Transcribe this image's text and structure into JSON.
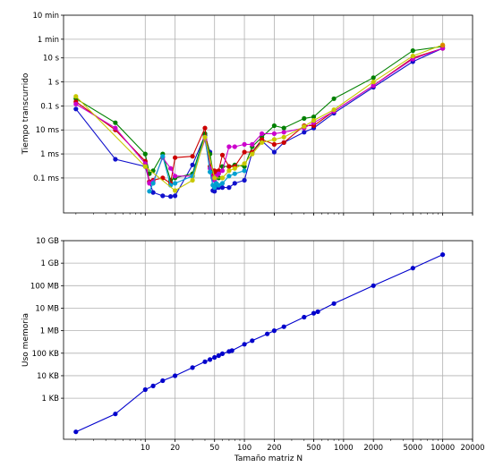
{
  "chart_data": [
    {
      "type": "line",
      "ylabel": "Tiempo transcurrido",
      "xlabel": "",
      "x_scale": "log",
      "y_scale": "log",
      "xlim": [
        1.5,
        20000
      ],
      "ylim_seconds": [
        3.5e-06,
        600
      ],
      "grid": true,
      "yticks": [
        {
          "v": 0.0001,
          "label": "0.1 ms"
        },
        {
          "v": 0.001,
          "label": "1 ms"
        },
        {
          "v": 0.01,
          "label": "10 ms"
        },
        {
          "v": 0.1,
          "label": "0.1 s"
        },
        {
          "v": 1,
          "label": "1 s"
        },
        {
          "v": 10,
          "label": "10 s"
        },
        {
          "v": 60,
          "label": "1 min"
        },
        {
          "v": 600,
          "label": "10 min"
        }
      ],
      "series": [
        {
          "color": "#1010cc",
          "x": [
            2,
            5,
            10,
            11,
            12,
            15,
            18,
            20,
            30,
            40,
            45,
            48,
            50,
            52,
            55,
            60,
            70,
            80,
            100,
            120,
            150,
            200,
            250,
            400,
            500,
            800,
            2000,
            5000,
            10000
          ],
          "y": [
            0.075,
            0.0006,
            0.0003,
            7e-05,
            2.5e-05,
            1.8e-05,
            1.7e-05,
            1.8e-05,
            0.00035,
            0.006,
            0.0012,
            3e-05,
            2.8e-05,
            4e-05,
            4e-05,
            4e-05,
            4e-05,
            6e-05,
            8e-05,
            0.0012,
            0.0035,
            0.0012,
            0.003,
            0.008,
            0.012,
            0.05,
            0.6,
            7,
            25
          ]
        },
        {
          "color": "#008000",
          "x": [
            2,
            5,
            10,
            11,
            12,
            15,
            18,
            20,
            30,
            40,
            45,
            48,
            50,
            52,
            55,
            60,
            70,
            80,
            100,
            120,
            150,
            200,
            250,
            400,
            500,
            800,
            2000,
            5000,
            10000
          ],
          "y": [
            0.2,
            0.02,
            0.001,
            0.00015,
            0.0002,
            0.001,
            8e-05,
            0.0001,
            0.00015,
            0.007,
            0.001,
            0.0002,
            0.00018,
            0.00012,
            0.0001,
            0.0003,
            0.0003,
            0.00035,
            0.0003,
            0.002,
            0.005,
            0.015,
            0.012,
            0.03,
            0.035,
            0.2,
            1.5,
            20,
            30
          ]
        },
        {
          "color": "#cc0000",
          "x": [
            2,
            5,
            10,
            11,
            12,
            15,
            18,
            20,
            30,
            40,
            45,
            48,
            50,
            52,
            55,
            60,
            70,
            80,
            100,
            120,
            150,
            200,
            250,
            400,
            500,
            800,
            2000,
            5000,
            10000
          ],
          "y": [
            0.15,
            0.01,
            0.0005,
            7e-05,
            8e-05,
            0.0001,
            6e-05,
            0.0007,
            0.0008,
            0.012,
            0.0003,
            0.00012,
            0.0002,
            0.00015,
            0.0002,
            0.0009,
            0.0003,
            0.0003,
            0.0012,
            0.0012,
            0.004,
            0.0025,
            0.003,
            0.015,
            0.015,
            0.06,
            0.7,
            10,
            25
          ]
        },
        {
          "color": "#cc00cc",
          "x": [
            2,
            5,
            10,
            11,
            12,
            15,
            18,
            20,
            30,
            40,
            45,
            48,
            50,
            52,
            55,
            60,
            70,
            80,
            100,
            120,
            150,
            200,
            250,
            400,
            500,
            800,
            2000,
            5000,
            10000
          ],
          "y": [
            0.12,
            0.012,
            0.0004,
            6e-05,
            7e-05,
            0.0007,
            0.00025,
            0.00012,
            0.00012,
            0.004,
            0.00025,
            0.0001,
            8e-05,
            0.00012,
            0.00015,
            0.0002,
            0.002,
            0.002,
            0.0025,
            0.0025,
            0.007,
            0.007,
            0.008,
            0.012,
            0.02,
            0.06,
            0.7,
            9,
            25
          ]
        },
        {
          "color": "#00a0d0",
          "x": [
            11,
            12,
            15,
            18,
            20,
            30,
            40,
            45,
            48,
            50,
            52,
            55,
            60,
            70,
            80,
            100
          ],
          "y": [
            2.8e-05,
            6e-05,
            0.0008,
            5e-05,
            6e-05,
            0.00012,
            0.005,
            0.00018,
            5e-05,
            4e-05,
            6e-05,
            5e-05,
            6e-05,
            0.00012,
            0.00015,
            0.0002
          ]
        },
        {
          "color": "#c8c800",
          "x": [
            2,
            10,
            20,
            30,
            40,
            50,
            60,
            70,
            80,
            100,
            120,
            150,
            200,
            250,
            400,
            500,
            800,
            2000,
            5000,
            10000
          ],
          "y": [
            0.25,
            0.0003,
            3e-05,
            8e-05,
            0.005,
            0.0001,
            0.0001,
            0.0002,
            0.00025,
            0.0004,
            0.001,
            0.003,
            0.004,
            0.005,
            0.014,
            0.025,
            0.07,
            1,
            12,
            35
          ]
        },
        {
          "color": "#e08000",
          "x": [
            10000
          ],
          "y": [
            33
          ]
        }
      ]
    },
    {
      "type": "line",
      "xlabel": "Tamaño matriz N",
      "ylabel": "Uso memoria",
      "x_scale": "log",
      "y_scale": "log",
      "xlim": [
        1.5,
        20000
      ],
      "ylim_bytes": [
        15,
        10000000000
      ],
      "grid": true,
      "xticks": [
        10,
        20,
        50,
        100,
        200,
        500,
        1000,
        2000,
        5000,
        10000,
        20000
      ],
      "yticks": [
        {
          "v": 1000,
          "label": "1 KB"
        },
        {
          "v": 10000,
          "label": "10 KB"
        },
        {
          "v": 100000,
          "label": "100 KB"
        },
        {
          "v": 1000000,
          "label": "1 MB"
        },
        {
          "v": 10000000,
          "label": "10 MB"
        },
        {
          "v": 100000000,
          "label": "100 MB"
        },
        {
          "v": 1000000000,
          "label": "1 GB"
        },
        {
          "v": 10000000000,
          "label": "10 GB"
        }
      ],
      "series": [
        {
          "color": "#0000cc",
          "x": [
            2,
            5,
            10,
            12,
            15,
            20,
            30,
            40,
            45,
            50,
            55,
            60,
            70,
            75,
            100,
            120,
            170,
            200,
            250,
            400,
            500,
            550,
            800,
            2000,
            5000,
            10000
          ],
          "y": [
            32,
            200,
            2400,
            3500,
            6000,
            10000,
            23000,
            42000,
            52000,
            65000,
            78000,
            95000,
            120000,
            130000,
            250000,
            360000,
            720000,
            1000000,
            1500000,
            4000000,
            6000000,
            7000000,
            16000000,
            100000000,
            600000000,
            2400000000
          ]
        }
      ]
    }
  ]
}
